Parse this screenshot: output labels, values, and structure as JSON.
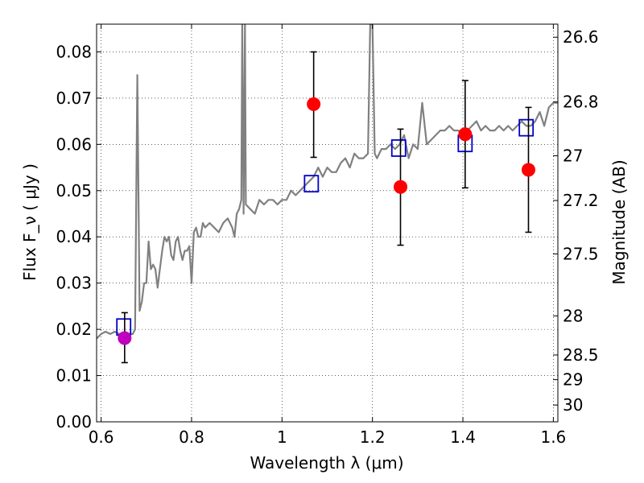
{
  "chart_data": {
    "type": "scatter",
    "xlabel": "Wavelength  λ (μm)",
    "ylabel": "Flux  F_ν  ( μJy )",
    "ylabel_right": "Magnitude (AB)",
    "xlim": [
      0.59,
      1.61
    ],
    "ylim": [
      0.0,
      0.086
    ],
    "grid": true,
    "x_ticks": [
      0.6,
      0.8,
      1.0,
      1.2,
      1.4,
      1.6
    ],
    "x_tick_labels": [
      "0.6",
      "0.8",
      "1",
      "1.2",
      "1.4",
      "1.6"
    ],
    "y_ticks": [
      0.0,
      0.01,
      0.02,
      0.03,
      0.04,
      0.05,
      0.06,
      0.07,
      0.08
    ],
    "y_tick_labels": [
      "0.00",
      "0.01",
      "0.02",
      "0.03",
      "0.04",
      "0.05",
      "0.06",
      "0.07",
      "0.08"
    ],
    "mag_ticks": [
      26.6,
      26.8,
      27.0,
      27.2,
      27.5,
      28.0,
      28.5,
      29.0,
      30.0
    ],
    "mag_tick_labels": [
      "26.6",
      "26.8",
      "27",
      "27.2",
      "27.5",
      "28",
      "28.5",
      "29",
      "30"
    ],
    "series": [
      {
        "kind": "line",
        "color": "#808080",
        "x": [
          0.59,
          0.6,
          0.61,
          0.62,
          0.63,
          0.64,
          0.65,
          0.66,
          0.67,
          0.675,
          0.68,
          0.685,
          0.69,
          0.695,
          0.7,
          0.705,
          0.71,
          0.715,
          0.72,
          0.725,
          0.73,
          0.735,
          0.74,
          0.745,
          0.75,
          0.755,
          0.76,
          0.765,
          0.77,
          0.775,
          0.78,
          0.785,
          0.79,
          0.795,
          0.8,
          0.805,
          0.81,
          0.815,
          0.82,
          0.825,
          0.83,
          0.84,
          0.85,
          0.86,
          0.87,
          0.88,
          0.89,
          0.895,
          0.9,
          0.905,
          0.91,
          0.912,
          0.915,
          0.918,
          0.92,
          0.93,
          0.94,
          0.95,
          0.96,
          0.97,
          0.98,
          0.99,
          1.0,
          1.01,
          1.02,
          1.03,
          1.04,
          1.05,
          1.06,
          1.07,
          1.08,
          1.09,
          1.1,
          1.11,
          1.12,
          1.13,
          1.14,
          1.15,
          1.16,
          1.17,
          1.18,
          1.19,
          1.195,
          1.2,
          1.205,
          1.21,
          1.22,
          1.23,
          1.24,
          1.25,
          1.26,
          1.27,
          1.28,
          1.29,
          1.3,
          1.31,
          1.32,
          1.33,
          1.34,
          1.35,
          1.36,
          1.37,
          1.38,
          1.39,
          1.4,
          1.41,
          1.42,
          1.43,
          1.44,
          1.45,
          1.46,
          1.47,
          1.48,
          1.49,
          1.5,
          1.51,
          1.52,
          1.53,
          1.54,
          1.55,
          1.56,
          1.57,
          1.58,
          1.59,
          1.6,
          1.61
        ],
        "y": [
          0.018,
          0.019,
          0.0195,
          0.019,
          0.0195,
          0.019,
          0.0192,
          0.019,
          0.019,
          0.02,
          0.075,
          0.024,
          0.026,
          0.03,
          0.03,
          0.039,
          0.033,
          0.034,
          0.033,
          0.029,
          0.033,
          0.037,
          0.04,
          0.039,
          0.04,
          0.036,
          0.035,
          0.039,
          0.04,
          0.037,
          0.035,
          0.037,
          0.037,
          0.038,
          0.03,
          0.041,
          0.042,
          0.04,
          0.04,
          0.043,
          0.042,
          0.043,
          0.042,
          0.041,
          0.043,
          0.044,
          0.042,
          0.04,
          0.045,
          0.046,
          0.048,
          0.086,
          0.045,
          0.086,
          0.047,
          0.046,
          0.045,
          0.048,
          0.047,
          0.048,
          0.048,
          0.047,
          0.048,
          0.048,
          0.05,
          0.049,
          0.05,
          0.051,
          0.052,
          0.053,
          0.055,
          0.053,
          0.055,
          0.054,
          0.054,
          0.056,
          0.057,
          0.055,
          0.058,
          0.057,
          0.057,
          0.058,
          0.086,
          0.086,
          0.058,
          0.057,
          0.059,
          0.059,
          0.06,
          0.059,
          0.06,
          0.062,
          0.057,
          0.06,
          0.059,
          0.069,
          0.06,
          0.061,
          0.062,
          0.063,
          0.063,
          0.064,
          0.063,
          0.063,
          0.062,
          0.063,
          0.064,
          0.065,
          0.063,
          0.064,
          0.063,
          0.063,
          0.064,
          0.063,
          0.064,
          0.063,
          0.064,
          0.065,
          0.064,
          0.064,
          0.065,
          0.067,
          0.064,
          0.068,
          0.069,
          0.069
        ]
      },
      {
        "kind": "squares",
        "color": "#0000cc",
        "x": [
          0.65,
          1.065,
          1.258,
          1.405,
          1.54
        ],
        "y": [
          0.0205,
          0.0515,
          0.0592,
          0.0602,
          0.0636
        ]
      },
      {
        "kind": "points",
        "color": "#ff0000",
        "x": [
          1.07,
          1.262,
          1.405,
          1.545
        ],
        "y": [
          0.0687,
          0.0508,
          0.0622,
          0.0545
        ],
        "yerr_low": [
          0.0572,
          0.0382,
          0.0506,
          0.041
        ],
        "yerr_high": [
          0.08,
          0.0633,
          0.0738,
          0.068
        ]
      },
      {
        "kind": "points",
        "color": "#bf00bf",
        "x": [
          0.652
        ],
        "y": [
          0.0181
        ],
        "yerr_low": [
          0.0128
        ],
        "yerr_high": [
          0.0236
        ]
      }
    ]
  }
}
